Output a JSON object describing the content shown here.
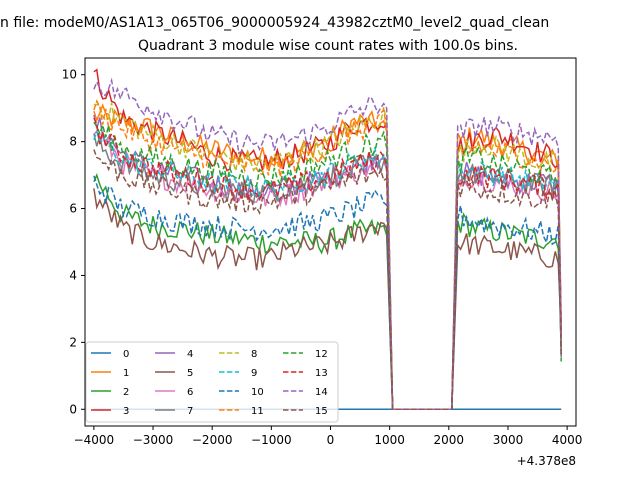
{
  "chart_data": {
    "type": "line",
    "suptitle": "n file: modeM0/AS1A13_065T06_9000005924_43982cztM0_level2_quad_clean",
    "title": "Quadrant 3 module wise count rates with 100.0s bins.",
    "offset_label": "+4.378e8",
    "xlabel": "",
    "ylabel": "",
    "xlim": [
      -4150,
      4150
    ],
    "ylim": [
      -0.5,
      10.5
    ],
    "x_ticks": [
      -4000,
      -3000,
      -2000,
      -1000,
      0,
      1000,
      2000,
      3000,
      4000
    ],
    "x_tick_labels": [
      "−4000",
      "−3000",
      "−2000",
      "−1000",
      "0",
      "1000",
      "2000",
      "3000",
      "4000"
    ],
    "y_ticks": [
      0,
      2,
      4,
      6,
      8,
      10
    ],
    "y_tick_labels": [
      "0",
      "2",
      "4",
      "6",
      "8",
      "10"
    ],
    "grid": false,
    "legend_position": "lower-left",
    "gaps": [
      [
        1000,
        2050
      ]
    ],
    "series": [
      {
        "name": "0",
        "color": "#1f77b4",
        "dash": "solid",
        "pre": [
          0
        ],
        "post": [
          0
        ]
      },
      {
        "name": "1",
        "color": "#ff7f0e",
        "dash": "solid",
        "pre": [
          8.8,
          8.6,
          8.4,
          8.0,
          7.8,
          7.6,
          7.5,
          7.7,
          8.0,
          8.6,
          8.5
        ],
        "post": [
          8.0,
          8.2,
          7.9,
          7.8,
          7.6,
          7.4
        ]
      },
      {
        "name": "2",
        "color": "#2ca02c",
        "dash": "solid",
        "pre": [
          7.0,
          5.8,
          5.5,
          5.4,
          5.2,
          5.1,
          5.0,
          5.0,
          5.0,
          5.3,
          5.4
        ],
        "post": [
          5.6,
          5.4,
          5.3,
          5.2,
          5.1,
          5.1
        ]
      },
      {
        "name": "3",
        "color": "#d62728",
        "dash": "solid",
        "pre": [
          10.0,
          8.7,
          8.3,
          8.0,
          7.6,
          7.4,
          7.4,
          7.6,
          7.9,
          8.5,
          8.7
        ],
        "post": [
          7.8,
          8.1,
          8.2,
          8.0,
          7.7,
          7.5
        ]
      },
      {
        "name": "4",
        "color": "#9467bd",
        "dash": "solid",
        "pre": [
          8.6,
          7.6,
          7.2,
          7.0,
          6.8,
          6.6,
          6.5,
          6.7,
          6.9,
          7.3,
          7.6
        ],
        "post": [
          7.1,
          7.0,
          6.9,
          6.8,
          6.8,
          6.7
        ]
      },
      {
        "name": "5",
        "color": "#8c564b",
        "dash": "solid",
        "pre": [
          6.4,
          5.4,
          5.0,
          4.8,
          4.6,
          4.5,
          4.5,
          4.8,
          4.9,
          5.2,
          5.6
        ],
        "post": [
          5.0,
          4.9,
          4.8,
          4.7,
          4.6,
          4.5
        ]
      },
      {
        "name": "6",
        "color": "#e377c2",
        "dash": "solid",
        "pre": [
          8.3,
          7.4,
          7.0,
          6.8,
          6.6,
          6.4,
          6.3,
          6.5,
          6.8,
          7.1,
          7.3
        ],
        "post": [
          7.0,
          6.9,
          6.8,
          6.7,
          6.6,
          6.5
        ]
      },
      {
        "name": "7",
        "color": "#7f7f7f",
        "dash": "solid",
        "pre": [
          8.0,
          7.3,
          7.0,
          6.8,
          6.6,
          6.5,
          6.5,
          6.7,
          6.9,
          7.2,
          7.4
        ],
        "post": [
          7.0,
          7.0,
          6.9,
          6.8,
          6.7,
          6.7
        ]
      },
      {
        "name": "8",
        "color": "#bcbd22",
        "dash": "dashed",
        "pre": [
          9.2,
          8.6,
          8.2,
          7.9,
          7.6,
          7.4,
          7.3,
          7.6,
          7.9,
          8.4,
          8.8
        ],
        "post": [
          7.6,
          8.0,
          7.8,
          7.6,
          7.4,
          7.3
        ]
      },
      {
        "name": "9",
        "color": "#17becf",
        "dash": "dashed",
        "pre": [
          8.2,
          7.5,
          7.2,
          7.0,
          6.8,
          6.7,
          6.6,
          6.8,
          7.0,
          7.4,
          7.6
        ],
        "post": [
          7.2,
          7.1,
          7.0,
          6.9,
          6.8,
          6.7
        ]
      },
      {
        "name": "10",
        "color": "#1f77b4",
        "dash": "dashed",
        "pre": [
          6.8,
          6.0,
          5.8,
          5.6,
          5.5,
          5.4,
          5.4,
          5.5,
          5.7,
          6.0,
          6.3
        ],
        "post": [
          5.8,
          5.6,
          5.5,
          5.4,
          5.3,
          5.2
        ]
      },
      {
        "name": "11",
        "color": "#ff7f0e",
        "dash": "dashed",
        "pre": [
          9.0,
          8.4,
          8.0,
          7.8,
          7.5,
          7.3,
          7.2,
          7.4,
          7.8,
          8.3,
          8.6
        ],
        "post": [
          7.5,
          7.9,
          7.7,
          7.6,
          7.4,
          7.2
        ]
      },
      {
        "name": "12",
        "color": "#2ca02c",
        "dash": "dashed",
        "pre": [
          8.5,
          7.8,
          7.5,
          7.3,
          7.1,
          7.0,
          6.9,
          7.1,
          7.4,
          7.8,
          8.0
        ],
        "post": [
          7.4,
          7.5,
          7.3,
          7.2,
          7.0,
          6.9
        ]
      },
      {
        "name": "13",
        "color": "#d62728",
        "dash": "dashed",
        "pre": [
          8.4,
          7.6,
          7.2,
          7.0,
          6.8,
          6.6,
          6.5,
          6.7,
          6.9,
          7.3,
          7.5
        ],
        "post": [
          7.0,
          7.0,
          6.9,
          6.8,
          6.7,
          6.6
        ]
      },
      {
        "name": "14",
        "color": "#9467bd",
        "dash": "dashed",
        "pre": [
          9.8,
          9.4,
          9.0,
          8.6,
          8.2,
          8.0,
          7.9,
          8.1,
          8.4,
          8.9,
          9.2
        ],
        "post": [
          8.2,
          8.5,
          8.4,
          8.3,
          8.2,
          8.1
        ]
      },
      {
        "name": "15",
        "color": "#8c564b",
        "dash": "dashed",
        "pre": [
          7.6,
          7.0,
          6.7,
          6.5,
          6.3,
          6.2,
          6.2,
          6.4,
          6.6,
          6.9,
          7.1
        ],
        "post": [
          6.7,
          6.6,
          6.5,
          6.4,
          6.3,
          6.3
        ]
      }
    ]
  }
}
